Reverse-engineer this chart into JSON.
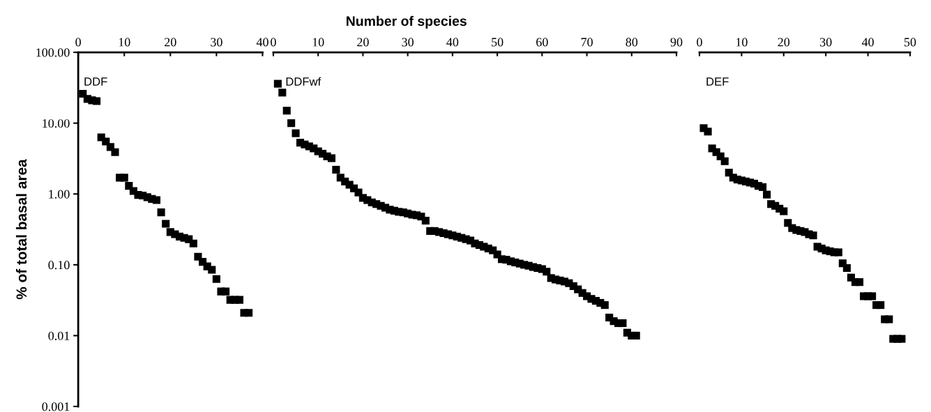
{
  "chart_data": [
    {
      "type": "scatter",
      "ylabel": "% of total basal area",
      "annotations": [
        "DDF"
      ],
      "marker": "square",
      "log": true,
      "xlim": [
        0,
        40
      ],
      "xticks": [
        0,
        10,
        20,
        30,
        40
      ],
      "ylim": [
        0.001,
        100
      ],
      "yticks": [
        {
          "value": 100,
          "label": "100.00"
        },
        {
          "value": 10,
          "label": "10.00"
        },
        {
          "value": 1,
          "label": "1.00"
        },
        {
          "value": 0.1,
          "label": "0.10"
        },
        {
          "value": 0.01,
          "label": "0.01"
        },
        {
          "value": 0.001,
          "label": "0.001"
        }
      ],
      "series": [
        {
          "color": "#000000",
          "x": [
            1,
            2,
            3,
            4,
            5,
            6,
            7,
            8,
            9,
            10,
            11,
            12,
            13,
            14,
            15,
            16,
            17,
            18,
            19,
            20,
            21,
            22,
            23,
            24,
            25,
            26,
            27,
            28,
            29,
            30,
            31,
            32,
            33,
            34,
            35,
            36,
            37
          ],
          "values": [
            26,
            22,
            21,
            20.5,
            6.3,
            5.5,
            4.6,
            3.9,
            1.7,
            1.7,
            1.3,
            1.1,
            0.97,
            0.95,
            0.9,
            0.85,
            0.82,
            0.55,
            0.38,
            0.29,
            0.27,
            0.25,
            0.24,
            0.23,
            0.2,
            0.13,
            0.11,
            0.095,
            0.085,
            0.063,
            0.042,
            0.042,
            0.032,
            0.032,
            0.032,
            0.021,
            0.021
          ]
        }
      ]
    },
    {
      "type": "scatter",
      "xlabel": "Number of species",
      "annotations": [
        "DDFwf"
      ],
      "marker": "square",
      "log": true,
      "tick_labels": "x",
      "xlim": [
        0,
        90
      ],
      "xticks": [
        0,
        10,
        20,
        30,
        40,
        50,
        60,
        70,
        80,
        90
      ],
      "ylim": [
        0.001,
        100
      ],
      "series": [
        {
          "color": "#000000",
          "x": [
            1,
            2,
            3,
            4,
            5,
            6,
            7,
            8,
            9,
            10,
            11,
            12,
            13,
            14,
            15,
            16,
            17,
            18,
            19,
            20,
            21,
            22,
            23,
            24,
            25,
            26,
            27,
            28,
            29,
            30,
            31,
            32,
            33,
            34,
            35,
            36,
            37,
            38,
            39,
            40,
            41,
            42,
            43,
            44,
            45,
            46,
            47,
            48,
            49,
            50,
            51,
            52,
            53,
            54,
            55,
            56,
            57,
            58,
            59,
            60,
            61,
            62,
            63,
            64,
            65,
            66,
            67,
            68,
            69,
            70,
            71,
            72,
            73,
            74,
            75,
            76,
            77,
            78,
            79,
            80,
            81
          ],
          "values": [
            36,
            27,
            15,
            10,
            7.2,
            5.3,
            5.0,
            4.7,
            4.4,
            4.0,
            3.7,
            3.4,
            3.2,
            2.2,
            1.7,
            1.5,
            1.35,
            1.2,
            1.05,
            0.88,
            0.82,
            0.76,
            0.72,
            0.68,
            0.64,
            0.6,
            0.58,
            0.56,
            0.55,
            0.53,
            0.51,
            0.5,
            0.48,
            0.42,
            0.3,
            0.3,
            0.29,
            0.28,
            0.27,
            0.26,
            0.25,
            0.24,
            0.23,
            0.22,
            0.2,
            0.19,
            0.18,
            0.17,
            0.16,
            0.14,
            0.12,
            0.118,
            0.112,
            0.108,
            0.104,
            0.1,
            0.097,
            0.093,
            0.09,
            0.087,
            0.08,
            0.065,
            0.062,
            0.06,
            0.058,
            0.055,
            0.05,
            0.045,
            0.04,
            0.036,
            0.033,
            0.031,
            0.029,
            0.027,
            0.018,
            0.016,
            0.015,
            0.015,
            0.011,
            0.01,
            0.01
          ]
        }
      ]
    },
    {
      "type": "scatter",
      "annotations": [
        "DEF"
      ],
      "marker": "square",
      "log": true,
      "tick_labels": "x",
      "xlim": [
        0,
        50
      ],
      "xticks": [
        0,
        10,
        20,
        30,
        40,
        50
      ],
      "ylim": [
        0.001,
        100
      ],
      "series": [
        {
          "color": "#000000",
          "x": [
            1,
            2,
            3,
            4,
            5,
            6,
            7,
            8,
            9,
            10,
            11,
            12,
            13,
            14,
            15,
            16,
            17,
            18,
            19,
            20,
            21,
            22,
            23,
            24,
            25,
            26,
            27,
            28,
            29,
            30,
            31,
            32,
            33,
            34,
            35,
            36,
            37,
            38,
            39,
            40,
            41,
            42,
            43,
            44,
            45,
            46,
            47,
            48
          ],
          "values": [
            8.5,
            7.6,
            4.4,
            3.9,
            3.4,
            2.9,
            2.0,
            1.7,
            1.6,
            1.55,
            1.5,
            1.45,
            1.4,
            1.3,
            1.25,
            0.98,
            0.72,
            0.68,
            0.62,
            0.57,
            0.39,
            0.33,
            0.31,
            0.3,
            0.29,
            0.27,
            0.26,
            0.18,
            0.17,
            0.16,
            0.155,
            0.15,
            0.15,
            0.105,
            0.09,
            0.066,
            0.057,
            0.057,
            0.036,
            0.036,
            0.036,
            0.027,
            0.027,
            0.017,
            0.017,
            0.009,
            0.009,
            0.009
          ]
        }
      ]
    }
  ]
}
